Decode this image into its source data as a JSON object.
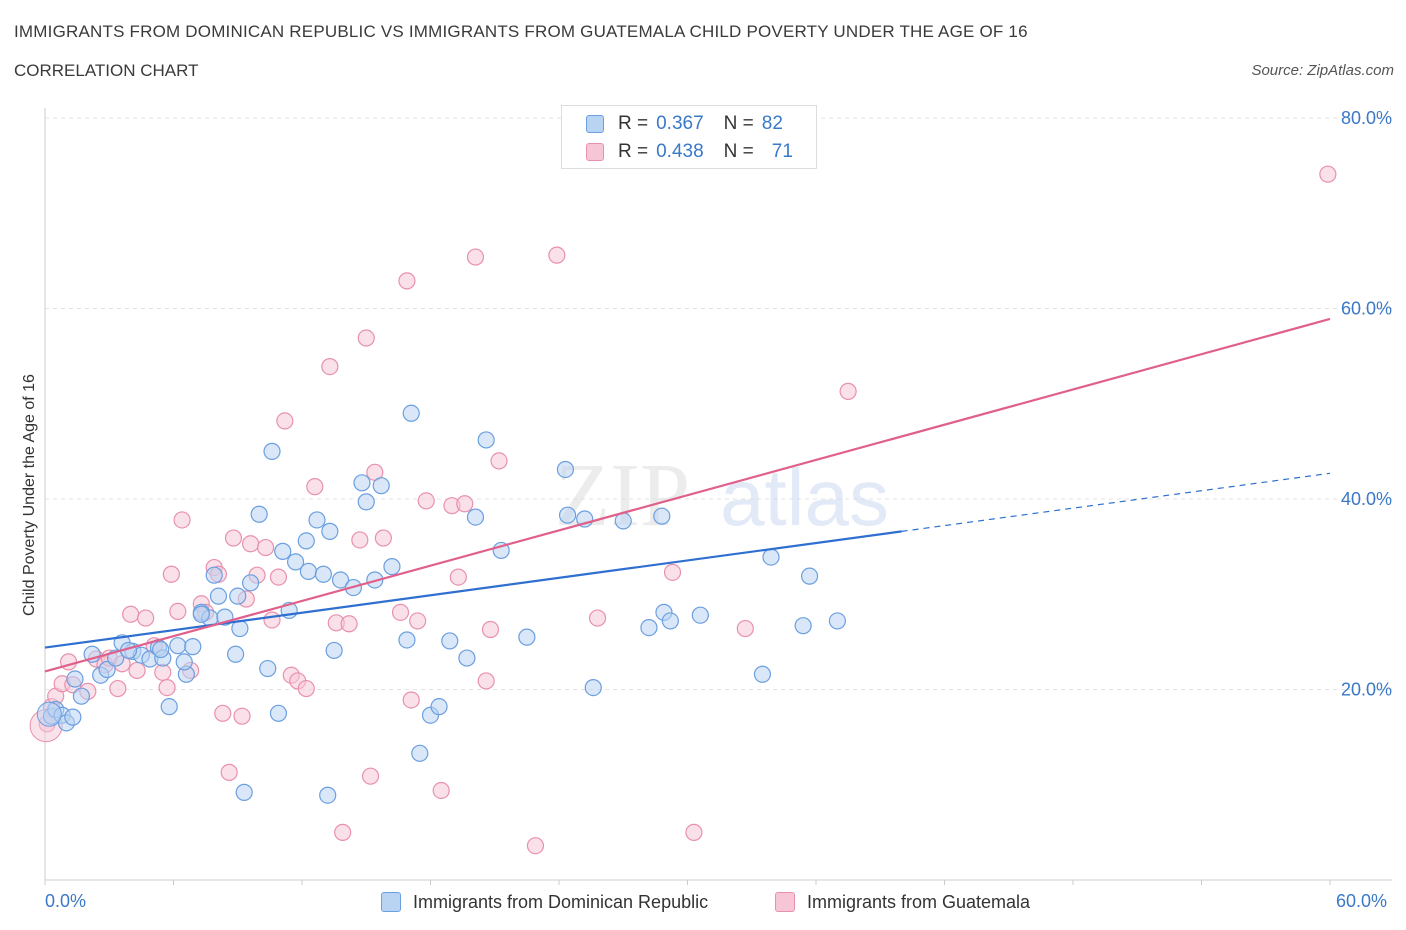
{
  "header": {
    "title": "IMMIGRANTS FROM DOMINICAN REPUBLIC VS IMMIGRANTS FROM GUATEMALA CHILD POVERTY UNDER THE AGE OF 16",
    "subtitle": "CORRELATION CHART",
    "source": "Source: ZipAtlas.com"
  },
  "watermark": {
    "zip": "ZIP",
    "atlas": "atlas"
  },
  "colors": {
    "blue_fill": "#b9d3f3",
    "blue_stroke": "#6b9fe0",
    "blue_line": "#2e6fd0",
    "pink_fill": "#f6c6d6",
    "pink_stroke": "#e891ad",
    "pink_line": "#e0608b",
    "axis_text": "#3a78c9",
    "grid": "#e3e3e3"
  },
  "legend_top": {
    "rows": [
      {
        "r_label": "R =",
        "r_value": "0.367",
        "n_label": "N =",
        "n_value": "82",
        "series": "blue"
      },
      {
        "r_label": "R =",
        "r_value": "0.438",
        "n_label": "N =",
        "n_value": "71",
        "series": "pink"
      }
    ]
  },
  "legend_bottom": {
    "items": [
      {
        "label": "Immigrants from Dominican Republic",
        "series": "blue"
      },
      {
        "label": "Immigrants from Guatemala",
        "series": "pink"
      }
    ]
  },
  "chart_data": {
    "type": "scatter",
    "title": "IMMIGRANTS FROM DOMINICAN REPUBLIC VS IMMIGRANTS FROM GUATEMALA CHILD POVERTY UNDER THE AGE OF 16",
    "subtitle": "CORRELATION CHART",
    "xlabel": "",
    "ylabel": "Child Poverty Under the Age of 16",
    "xlim": [
      0,
      60
    ],
    "ylim": [
      0,
      80
    ],
    "x_tick_labels": [
      {
        "value": 0,
        "label": "0.0%"
      },
      {
        "value": 60,
        "label": "60.0%"
      }
    ],
    "y_tick_labels": [
      {
        "value": 20,
        "label": "20.0%"
      },
      {
        "value": 40,
        "label": "40.0%"
      },
      {
        "value": 60,
        "label": "60.0%"
      },
      {
        "value": 80,
        "label": "80.0%"
      }
    ],
    "grid": true,
    "series": [
      {
        "name": "Immigrants from Dominican Republic",
        "color": "#6b9fe0",
        "trend": {
          "x": [
            0,
            40
          ],
          "y": [
            24.4,
            36.6
          ],
          "dashed_extension_to_x": 60,
          "dashed_extension_y": 42.7
        },
        "points": [
          [
            0.3,
            17.2
          ],
          [
            0.5,
            17.9
          ],
          [
            0.8,
            17.3
          ],
          [
            1.0,
            16.5
          ],
          [
            1.3,
            17.1
          ],
          [
            1.4,
            21.1
          ],
          [
            1.7,
            19.3
          ],
          [
            2.2,
            23.7
          ],
          [
            2.6,
            21.5
          ],
          [
            2.9,
            22.1
          ],
          [
            3.3,
            23.3
          ],
          [
            3.6,
            24.9
          ],
          [
            4.1,
            24.0
          ],
          [
            4.5,
            23.6
          ],
          [
            4.9,
            23.2
          ],
          [
            5.3,
            24.4
          ],
          [
            5.5,
            23.3
          ],
          [
            5.8,
            18.2
          ],
          [
            6.2,
            24.6
          ],
          [
            6.6,
            21.6
          ],
          [
            6.9,
            24.5
          ],
          [
            6.5,
            22.9
          ],
          [
            7.3,
            28.1
          ],
          [
            7.7,
            27.5
          ],
          [
            7.9,
            32.0
          ],
          [
            8.1,
            29.8
          ],
          [
            8.4,
            27.6
          ],
          [
            8.9,
            23.7
          ],
          [
            9.1,
            26.4
          ],
          [
            9.3,
            9.2
          ],
          [
            9.6,
            31.2
          ],
          [
            10.0,
            38.4
          ],
          [
            10.4,
            22.2
          ],
          [
            10.6,
            45.0
          ],
          [
            10.9,
            17.5
          ],
          [
            11.1,
            34.5
          ],
          [
            11.4,
            28.3
          ],
          [
            11.7,
            33.4
          ],
          [
            12.2,
            35.6
          ],
          [
            12.3,
            32.4
          ],
          [
            12.7,
            37.8
          ],
          [
            13.0,
            32.1
          ],
          [
            13.3,
            36.6
          ],
          [
            13.2,
            8.9
          ],
          [
            13.5,
            24.1
          ],
          [
            13.8,
            31.5
          ],
          [
            14.4,
            30.7
          ],
          [
            14.8,
            41.7
          ],
          [
            15.0,
            39.7
          ],
          [
            15.4,
            31.5
          ],
          [
            15.7,
            41.4
          ],
          [
            16.2,
            32.9
          ],
          [
            16.9,
            25.2
          ],
          [
            17.1,
            49.0
          ],
          [
            17.5,
            13.3
          ],
          [
            18.0,
            17.3
          ],
          [
            18.4,
            18.2
          ],
          [
            18.9,
            25.1
          ],
          [
            19.7,
            23.3
          ],
          [
            20.1,
            38.1
          ],
          [
            20.6,
            46.2
          ],
          [
            21.3,
            34.6
          ],
          [
            22.5,
            25.5
          ],
          [
            24.3,
            43.1
          ],
          [
            24.4,
            38.3
          ],
          [
            25.2,
            37.9
          ],
          [
            25.6,
            20.2
          ],
          [
            27.0,
            37.7
          ],
          [
            28.2,
            26.5
          ],
          [
            28.8,
            38.2
          ],
          [
            28.9,
            28.1
          ],
          [
            29.2,
            27.2
          ],
          [
            30.6,
            27.8
          ],
          [
            33.5,
            21.6
          ],
          [
            33.9,
            33.9
          ],
          [
            35.4,
            26.7
          ],
          [
            35.7,
            31.9
          ],
          [
            37.0,
            27.2
          ],
          [
            5.4,
            24.2
          ],
          [
            3.9,
            24.1
          ],
          [
            7.3,
            27.9
          ],
          [
            9.0,
            29.8
          ]
        ]
      },
      {
        "name": "Immigrants from Guatemala",
        "color": "#e891ad",
        "trend": {
          "x": [
            0,
            60
          ],
          "y": [
            21.9,
            58.9
          ]
        },
        "points": [
          [
            0.1,
            16.4
          ],
          [
            0.3,
            18.2
          ],
          [
            0.5,
            19.3
          ],
          [
            0.8,
            20.6
          ],
          [
            1.1,
            22.9
          ],
          [
            1.3,
            20.5
          ],
          [
            2.0,
            19.8
          ],
          [
            2.4,
            23.2
          ],
          [
            2.8,
            22.6
          ],
          [
            3.0,
            23.3
          ],
          [
            3.4,
            20.1
          ],
          [
            3.6,
            22.7
          ],
          [
            4.0,
            27.9
          ],
          [
            4.3,
            22.0
          ],
          [
            4.7,
            27.5
          ],
          [
            5.1,
            24.6
          ],
          [
            5.5,
            21.8
          ],
          [
            5.7,
            20.2
          ],
          [
            5.9,
            32.1
          ],
          [
            6.2,
            28.2
          ],
          [
            6.4,
            37.8
          ],
          [
            6.8,
            22.0
          ],
          [
            7.3,
            29.0
          ],
          [
            7.5,
            28.1
          ],
          [
            7.9,
            32.8
          ],
          [
            8.1,
            32.1
          ],
          [
            8.3,
            17.5
          ],
          [
            8.6,
            11.3
          ],
          [
            8.8,
            35.9
          ],
          [
            9.2,
            17.2
          ],
          [
            9.4,
            29.5
          ],
          [
            9.6,
            35.3
          ],
          [
            9.9,
            32.0
          ],
          [
            10.3,
            34.9
          ],
          [
            10.6,
            27.3
          ],
          [
            10.9,
            31.8
          ],
          [
            11.2,
            48.2
          ],
          [
            11.5,
            21.5
          ],
          [
            11.8,
            20.9
          ],
          [
            12.2,
            20.1
          ],
          [
            12.6,
            41.3
          ],
          [
            13.3,
            53.9
          ],
          [
            13.6,
            27.0
          ],
          [
            13.9,
            5.0
          ],
          [
            14.2,
            26.9
          ],
          [
            14.7,
            35.7
          ],
          [
            15.0,
            56.9
          ],
          [
            15.2,
            10.9
          ],
          [
            15.4,
            42.8
          ],
          [
            15.8,
            35.9
          ],
          [
            16.6,
            28.1
          ],
          [
            16.9,
            62.9
          ],
          [
            17.1,
            18.9
          ],
          [
            17.4,
            27.2
          ],
          [
            17.8,
            39.8
          ],
          [
            18.5,
            9.4
          ],
          [
            19.0,
            39.3
          ],
          [
            19.3,
            31.8
          ],
          [
            19.6,
            39.5
          ],
          [
            20.1,
            65.4
          ],
          [
            20.6,
            20.9
          ],
          [
            20.8,
            26.3
          ],
          [
            21.2,
            44.0
          ],
          [
            22.9,
            3.6
          ],
          [
            23.9,
            65.6
          ],
          [
            25.8,
            27.5
          ],
          [
            29.3,
            32.3
          ],
          [
            30.3,
            5.0
          ],
          [
            32.7,
            26.4
          ],
          [
            37.5,
            51.3
          ],
          [
            59.9,
            74.1
          ]
        ]
      }
    ]
  }
}
